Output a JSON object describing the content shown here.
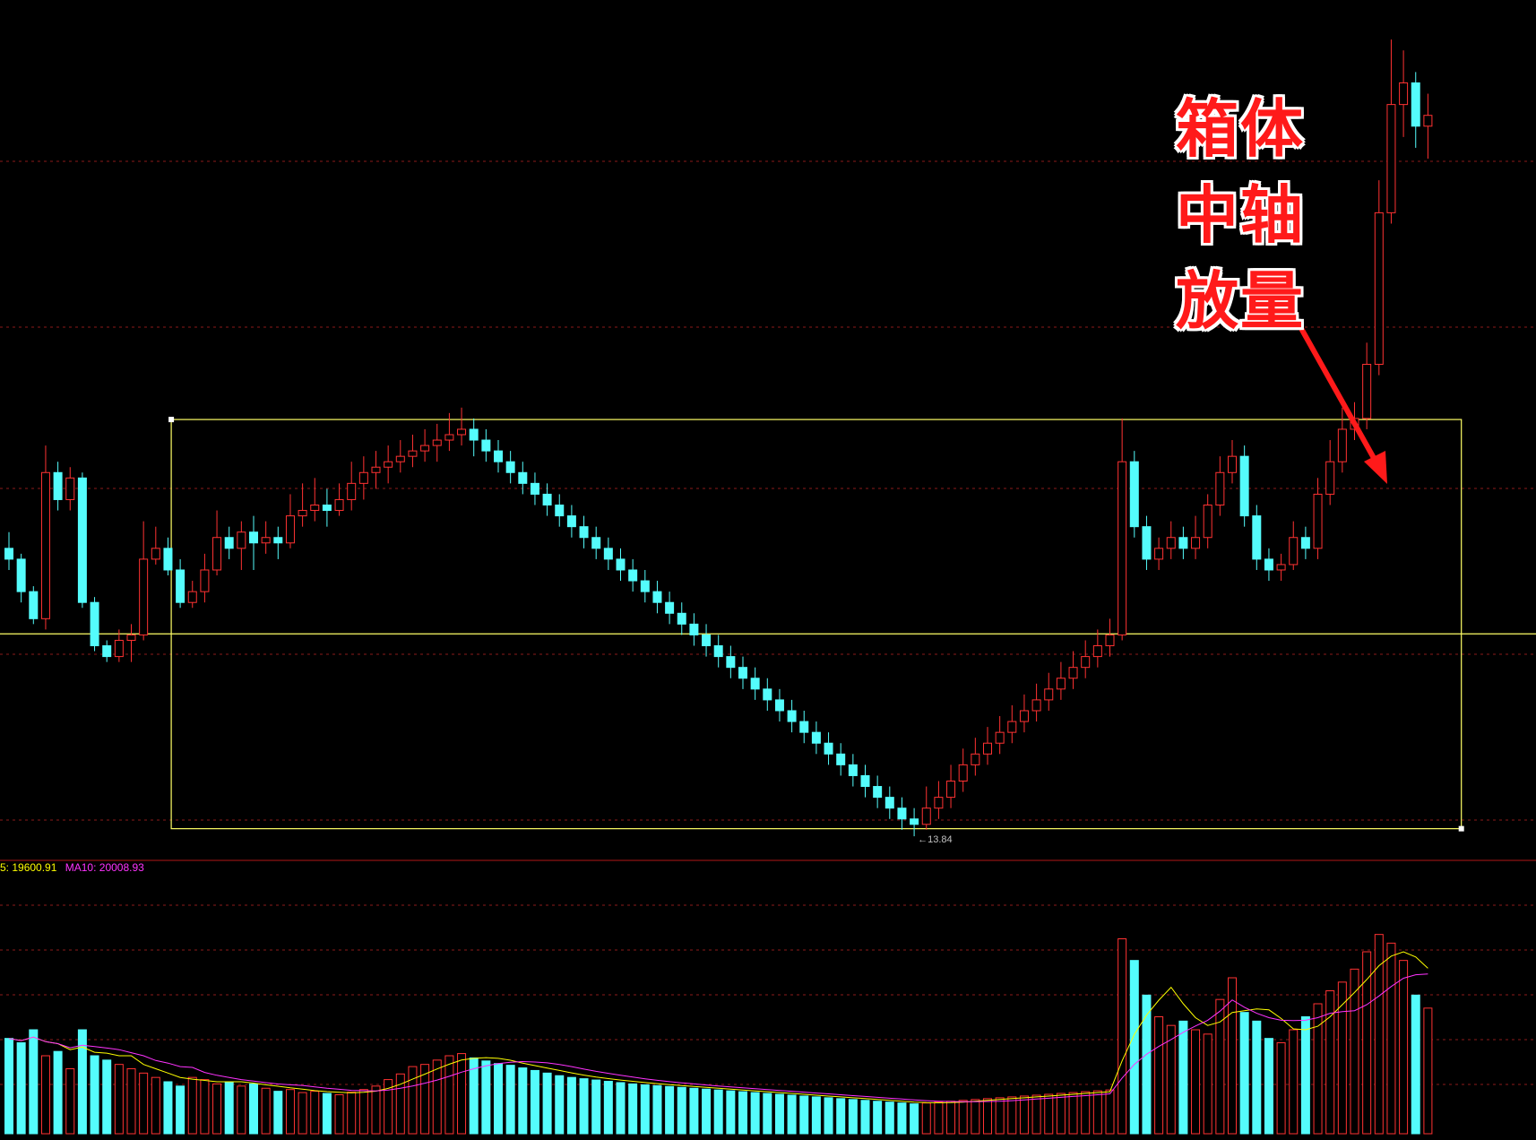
{
  "annotation": {
    "line1": "箱体",
    "line2": "中轴",
    "line3": "放量",
    "text_color": "#ff1a1a",
    "outline_color": "#ffffff",
    "arrow_color": "#ff1a1a"
  },
  "volume_legend": {
    "ma5_text": "5: 19600.91",
    "ma10_text": "MA10: 20008.93",
    "ma5_color": "#ffff00",
    "ma10_color": "#ff33ff"
  },
  "low_marker": {
    "text": "←13.84"
  },
  "chart_data": {
    "type": "candlestick",
    "colors": {
      "up": "#ff3232",
      "down": "#54fcfc",
      "box": "#ffff66",
      "grid": "#8b1a1a",
      "background": "#000000"
    },
    "price_range": [
      13.7,
      21.4
    ],
    "marked_low": 13.84,
    "box": {
      "top": 17.69,
      "bottom": 13.91,
      "mid": 15.71,
      "start_index": 14,
      "end_index": 118
    },
    "candles": [
      [
        16.5,
        16.4,
        16.65,
        16.3
      ],
      [
        16.4,
        16.1,
        16.45,
        16.0
      ],
      [
        16.1,
        15.85,
        16.15,
        15.8
      ],
      [
        15.85,
        17.2,
        17.45,
        15.75
      ],
      [
        17.2,
        16.95,
        17.3,
        16.85
      ],
      [
        16.95,
        17.15,
        17.25,
        16.85
      ],
      [
        17.15,
        16.0,
        17.2,
        15.95
      ],
      [
        16.0,
        15.6,
        16.05,
        15.55
      ],
      [
        15.6,
        15.5,
        15.65,
        15.45
      ],
      [
        15.5,
        15.65,
        15.75,
        15.45
      ],
      [
        15.65,
        15.7,
        15.8,
        15.45
      ],
      [
        15.7,
        16.4,
        16.75,
        15.65
      ],
      [
        16.4,
        16.5,
        16.7,
        16.35
      ],
      [
        16.5,
        16.3,
        16.6,
        16.25
      ],
      [
        16.3,
        16.0,
        16.4,
        15.95
      ],
      [
        16.0,
        16.1,
        16.2,
        15.95
      ],
      [
        16.1,
        16.3,
        16.45,
        16.0
      ],
      [
        16.3,
        16.6,
        16.85,
        16.25
      ],
      [
        16.6,
        16.5,
        16.7,
        16.4
      ],
      [
        16.5,
        16.65,
        16.75,
        16.3
      ],
      [
        16.65,
        16.55,
        16.8,
        16.3
      ],
      [
        16.55,
        16.6,
        16.75,
        16.45
      ],
      [
        16.6,
        16.55,
        16.7,
        16.4
      ],
      [
        16.55,
        16.8,
        17.0,
        16.5
      ],
      [
        16.8,
        16.85,
        17.1,
        16.7
      ],
      [
        16.85,
        16.9,
        17.15,
        16.75
      ],
      [
        16.9,
        16.85,
        17.05,
        16.7
      ],
      [
        16.85,
        16.95,
        17.1,
        16.8
      ],
      [
        16.95,
        17.1,
        17.3,
        16.85
      ],
      [
        17.1,
        17.2,
        17.35,
        16.95
      ],
      [
        17.2,
        17.25,
        17.4,
        17.05
      ],
      [
        17.25,
        17.3,
        17.45,
        17.1
      ],
      [
        17.3,
        17.35,
        17.5,
        17.2
      ],
      [
        17.35,
        17.4,
        17.55,
        17.25
      ],
      [
        17.4,
        17.45,
        17.6,
        17.3
      ],
      [
        17.45,
        17.5,
        17.65,
        17.3
      ],
      [
        17.5,
        17.55,
        17.75,
        17.4
      ],
      [
        17.55,
        17.6,
        17.8,
        17.45
      ],
      [
        17.6,
        17.5,
        17.7,
        17.35
      ],
      [
        17.5,
        17.4,
        17.6,
        17.3
      ],
      [
        17.4,
        17.3,
        17.5,
        17.2
      ],
      [
        17.3,
        17.2,
        17.4,
        17.1
      ],
      [
        17.2,
        17.1,
        17.3,
        17.0
      ],
      [
        17.1,
        17.0,
        17.2,
        16.9
      ],
      [
        17.0,
        16.9,
        17.1,
        16.8
      ],
      [
        16.9,
        16.8,
        17.0,
        16.7
      ],
      [
        16.8,
        16.7,
        16.9,
        16.6
      ],
      [
        16.7,
        16.6,
        16.8,
        16.5
      ],
      [
        16.6,
        16.5,
        16.7,
        16.4
      ],
      [
        16.5,
        16.4,
        16.6,
        16.3
      ],
      [
        16.4,
        16.3,
        16.5,
        16.2
      ],
      [
        16.3,
        16.2,
        16.4,
        16.1
      ],
      [
        16.2,
        16.1,
        16.3,
        16.0
      ],
      [
        16.1,
        16.0,
        16.2,
        15.9
      ],
      [
        16.0,
        15.9,
        16.1,
        15.8
      ],
      [
        15.9,
        15.8,
        16.0,
        15.7
      ],
      [
        15.8,
        15.7,
        15.9,
        15.6
      ],
      [
        15.7,
        15.6,
        15.8,
        15.5
      ],
      [
        15.6,
        15.5,
        15.7,
        15.4
      ],
      [
        15.5,
        15.4,
        15.6,
        15.3
      ],
      [
        15.4,
        15.3,
        15.5,
        15.2
      ],
      [
        15.3,
        15.2,
        15.4,
        15.1
      ],
      [
        15.2,
        15.1,
        15.3,
        15.0
      ],
      [
        15.1,
        15.0,
        15.2,
        14.9
      ],
      [
        15.0,
        14.9,
        15.1,
        14.8
      ],
      [
        14.9,
        14.8,
        15.0,
        14.7
      ],
      [
        14.8,
        14.7,
        14.9,
        14.6
      ],
      [
        14.7,
        14.6,
        14.8,
        14.5
      ],
      [
        14.6,
        14.5,
        14.7,
        14.4
      ],
      [
        14.5,
        14.4,
        14.6,
        14.3
      ],
      [
        14.4,
        14.3,
        14.5,
        14.2
      ],
      [
        14.3,
        14.2,
        14.4,
        14.1
      ],
      [
        14.2,
        14.1,
        14.3,
        14.0
      ],
      [
        14.1,
        14.0,
        14.2,
        13.9
      ],
      [
        14.0,
        13.95,
        14.1,
        13.84
      ],
      [
        13.95,
        14.1,
        14.3,
        13.9
      ],
      [
        14.1,
        14.2,
        14.35,
        14.0
      ],
      [
        14.2,
        14.35,
        14.5,
        14.1
      ],
      [
        14.35,
        14.5,
        14.65,
        14.25
      ],
      [
        14.5,
        14.6,
        14.75,
        14.4
      ],
      [
        14.6,
        14.7,
        14.85,
        14.5
      ],
      [
        14.7,
        14.8,
        14.95,
        14.6
      ],
      [
        14.8,
        14.9,
        15.05,
        14.7
      ],
      [
        14.9,
        15.0,
        15.15,
        14.8
      ],
      [
        15.0,
        15.1,
        15.25,
        14.9
      ],
      [
        15.1,
        15.2,
        15.35,
        15.0
      ],
      [
        15.2,
        15.3,
        15.45,
        15.1
      ],
      [
        15.3,
        15.4,
        15.55,
        15.2
      ],
      [
        15.4,
        15.5,
        15.65,
        15.3
      ],
      [
        15.5,
        15.6,
        15.75,
        15.4
      ],
      [
        15.6,
        15.7,
        15.85,
        15.5
      ],
      [
        15.7,
        17.3,
        17.7,
        15.65
      ],
      [
        17.3,
        16.7,
        17.4,
        16.6
      ],
      [
        16.7,
        16.4,
        16.8,
        16.3
      ],
      [
        16.4,
        16.5,
        16.6,
        16.3
      ],
      [
        16.5,
        16.6,
        16.75,
        16.4
      ],
      [
        16.6,
        16.5,
        16.7,
        16.4
      ],
      [
        16.5,
        16.6,
        16.8,
        16.4
      ],
      [
        16.6,
        16.9,
        17.0,
        16.5
      ],
      [
        16.9,
        17.2,
        17.35,
        16.8
      ],
      [
        17.2,
        17.35,
        17.5,
        17.1
      ],
      [
        17.35,
        16.8,
        17.45,
        16.7
      ],
      [
        16.8,
        16.4,
        16.9,
        16.3
      ],
      [
        16.4,
        16.3,
        16.5,
        16.2
      ],
      [
        16.3,
        16.35,
        16.45,
        16.2
      ],
      [
        16.35,
        16.6,
        16.75,
        16.3
      ],
      [
        16.6,
        16.5,
        16.7,
        16.4
      ],
      [
        16.5,
        17.0,
        17.15,
        16.4
      ],
      [
        17.0,
        17.3,
        17.5,
        16.9
      ],
      [
        17.3,
        17.6,
        17.8,
        17.2
      ],
      [
        17.6,
        17.7,
        17.85,
        17.5
      ],
      [
        17.7,
        18.2,
        18.4,
        17.6
      ],
      [
        18.2,
        19.6,
        19.9,
        18.1
      ],
      [
        19.6,
        20.6,
        21.2,
        19.5
      ],
      [
        20.6,
        20.8,
        21.1,
        20.3
      ],
      [
        20.8,
        20.4,
        20.9,
        20.2
      ],
      [
        20.4,
        20.5,
        20.7,
        20.1
      ]
    ],
    "volume": {
      "ma5_label": "5: 19600.91",
      "ma10_label": "MA10: 20008.93",
      "max": 60000,
      "values": [
        22000,
        21000,
        24000,
        18000,
        19000,
        15000,
        24000,
        18000,
        17000,
        16000,
        15000,
        14000,
        13000,
        12000,
        11000,
        13000,
        12500,
        11500,
        12000,
        11000,
        11500,
        10500,
        9800,
        10200,
        9500,
        9800,
        9300,
        9000,
        9600,
        10200,
        11000,
        12500,
        13800,
        15500,
        16000,
        17000,
        18000,
        18500,
        17500,
        16800,
        16200,
        15800,
        15200,
        14600,
        14000,
        13400,
        13000,
        12700,
        12400,
        12100,
        11800,
        11500,
        11300,
        11100,
        10900,
        10700,
        10500,
        10300,
        10100,
        9900,
        9700,
        9500,
        9300,
        9100,
        8900,
        8700,
        8500,
        8300,
        8100,
        7900,
        7700,
        7500,
        7300,
        7100,
        6900,
        7100,
        7300,
        7500,
        7700,
        7900,
        8100,
        8300,
        8500,
        8700,
        8900,
        9100,
        9300,
        9500,
        9700,
        9900,
        10100,
        45000,
        40000,
        32000,
        27000,
        25000,
        26000,
        24000,
        23000,
        31000,
        36000,
        28000,
        26000,
        22000,
        21000,
        24000,
        27000,
        30000,
        33000,
        35000,
        38000,
        42000,
        46000,
        44000,
        40000,
        32000,
        29000
      ]
    }
  }
}
